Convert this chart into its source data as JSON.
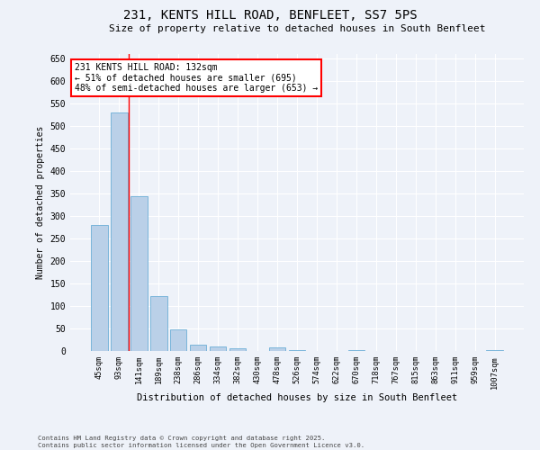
{
  "title1": "231, KENTS HILL ROAD, BENFLEET, SS7 5PS",
  "title2": "Size of property relative to detached houses in South Benfleet",
  "xlabel": "Distribution of detached houses by size in South Benfleet",
  "ylabel": "Number of detached properties",
  "categories": [
    "45sqm",
    "93sqm",
    "141sqm",
    "189sqm",
    "238sqm",
    "286sqm",
    "334sqm",
    "382sqm",
    "430sqm",
    "478sqm",
    "526sqm",
    "574sqm",
    "622sqm",
    "670sqm",
    "718sqm",
    "767sqm",
    "815sqm",
    "863sqm",
    "911sqm",
    "959sqm",
    "1007sqm"
  ],
  "values": [
    280,
    530,
    345,
    123,
    48,
    15,
    10,
    6,
    0,
    8,
    3,
    0,
    0,
    3,
    0,
    0,
    0,
    0,
    0,
    0,
    2
  ],
  "bar_color": "#bad0e8",
  "bar_edge_color": "#6baed6",
  "vline_x": 1.5,
  "vline_color": "red",
  "annotation_text": "231 KENTS HILL ROAD: 132sqm\n← 51% of detached houses are smaller (695)\n48% of semi-detached houses are larger (653) →",
  "annotation_box_color": "white",
  "annotation_box_edge": "red",
  "background_color": "#eef2f9",
  "grid_color": "white",
  "footer": "Contains HM Land Registry data © Crown copyright and database right 2025.\nContains public sector information licensed under the Open Government Licence v3.0.",
  "ylim": [
    0,
    660
  ],
  "yticks": [
    0,
    50,
    100,
    150,
    200,
    250,
    300,
    350,
    400,
    450,
    500,
    550,
    600,
    650
  ]
}
